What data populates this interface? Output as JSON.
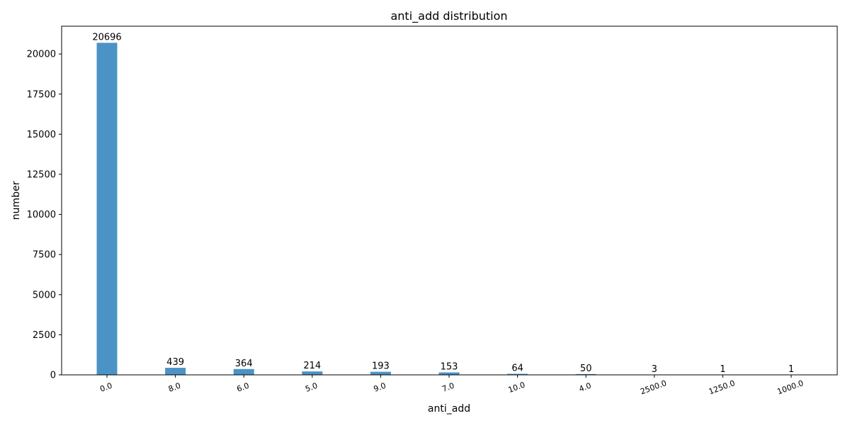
{
  "chart_data": {
    "type": "bar",
    "title": "anti_add distribution",
    "xlabel": "anti_add",
    "ylabel": "number",
    "categories": [
      "0.0",
      "8.0",
      "6.0",
      "5.0",
      "9.0",
      "7.0",
      "10.0",
      "4.0",
      "2500.0",
      "1250.0",
      "1000.0"
    ],
    "values": [
      20696,
      439,
      364,
      214,
      193,
      153,
      64,
      50,
      3,
      1,
      1
    ],
    "data_labels": [
      "20696",
      "439",
      "364",
      "214",
      "193",
      "153",
      "64",
      "50",
      "3",
      "1",
      "1"
    ],
    "ylim": [
      0,
      21730
    ],
    "yticks": [
      0,
      2500,
      5000,
      7500,
      10000,
      12500,
      15000,
      17500,
      20000
    ],
    "ytick_labels": [
      "0",
      "2500",
      "5000",
      "7500",
      "10000",
      "12500",
      "15000",
      "17500",
      "20000"
    ],
    "x_tick_rotation_deg": 20,
    "grid": false,
    "legend": "none",
    "bar_color": "#4c93c5"
  }
}
